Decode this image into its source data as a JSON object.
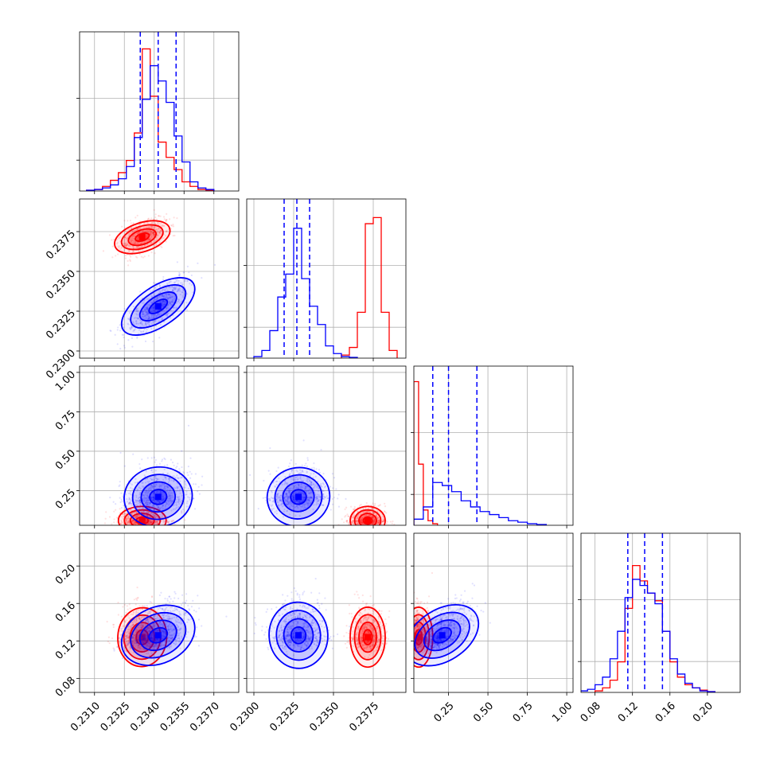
{
  "colors": {
    "series_a": "#ff0000",
    "series_b": "#0000ff",
    "grid": "#b0b0b0"
  },
  "chart_data": {
    "type": "corner",
    "grid": true,
    "parameters": [
      {
        "ticks": [
          0.231,
          0.2325,
          0.234,
          0.2355,
          0.237
        ],
        "tick_labels": [
          "0.2310",
          "0.2325",
          "0.2340",
          "0.2355",
          "0.2370"
        ],
        "range": [
          0.23025,
          0.23825
        ]
      },
      {
        "ticks": [
          0.23,
          0.2325,
          0.235,
          0.2375
        ],
        "tick_labels": [
          "0.2300",
          "0.2325",
          "0.2350",
          "0.2375"
        ],
        "range": [
          0.22955,
          0.23955
        ]
      },
      {
        "ticks": [
          0.25,
          0.5,
          0.75,
          1.0
        ],
        "tick_labels": [
          "0.25",
          "0.50",
          "0.75",
          "1.00"
        ],
        "range": [
          0.03,
          1.04
        ]
      },
      {
        "ticks": [
          0.08,
          0.12,
          0.16,
          0.2
        ],
        "tick_labels": [
          "0.08",
          "0.12",
          "0.16",
          "0.20"
        ],
        "range": [
          0.065,
          0.235
        ]
      }
    ],
    "series": [
      {
        "color": "#ff0000",
        "peak": [
          0.2334,
          0.23715,
          0.06,
          0.124
        ],
        "spread": [
          0.0006,
          0.00055,
          0.045,
          0.016
        ],
        "rho": [
          [
            0,
            0.45,
            0,
            -0.05
          ],
          [
            0.45,
            0,
            0,
            0
          ],
          [
            0,
            0,
            0,
            0
          ],
          [
            -0.05,
            0,
            0,
            0
          ]
        ],
        "hist": [
          {
            "bins": [
              0.2306,
              0.231,
              0.2314,
              0.2318,
              0.2322,
              0.2326,
              0.233,
              0.2334,
              0.2338,
              0.2342,
              0.2346,
              0.235,
              0.2354,
              0.2358,
              0.2362,
              0.2366,
              0.237
            ],
            "counts": [
              0.005,
              0.01,
              0.03,
              0.07,
              0.12,
              0.2,
              0.38,
              0.93,
              0.62,
              0.32,
              0.22,
              0.14,
              0.06,
              0.03,
              0.01,
              0.005
            ]
          },
          {
            "bins": [
              0.2355,
              0.236,
              0.2365,
              0.237,
              0.2375,
              0.238,
              0.2385,
              0.239
            ],
            "counts": [
              0.02,
              0.07,
              0.3,
              0.88,
              0.92,
              0.3,
              0.05
            ]
          },
          {
            "bins": [
              0.03,
              0.06,
              0.09,
              0.12,
              0.15,
              0.18
            ],
            "counts": [
              0.94,
              0.4,
              0.1,
              0.03,
              0.01
            ]
          },
          {
            "bins": [
              0.08,
              0.088,
              0.096,
              0.104,
              0.112,
              0.12,
              0.128,
              0.136,
              0.144,
              0.152,
              0.16,
              0.168,
              0.176,
              0.184,
              0.192,
              0.2,
              0.208
            ],
            "counts": [
              0.01,
              0.03,
              0.08,
              0.2,
              0.55,
              0.83,
              0.73,
              0.65,
              0.6,
              0.4,
              0.2,
              0.1,
              0.05,
              0.03,
              0.015,
              0.005
            ]
          }
        ]
      },
      {
        "color": "#0000ff",
        "peak": [
          0.2342,
          0.2328,
          0.21,
          0.126
        ],
        "spread": [
          0.0008,
          0.0009,
          0.1,
          0.018
        ],
        "rho": [
          [
            0,
            0.75,
            0.15,
            0.45
          ],
          [
            0.75,
            0,
            0.2,
            0.05
          ],
          [
            0.15,
            0.2,
            0,
            0.6
          ],
          [
            0.45,
            0.05,
            0.6,
            0
          ]
        ],
        "quantiles": [
          [
            0.2333,
            0.2342,
            0.2351
          ],
          [
            0.2319,
            0.2327,
            0.2335
          ],
          [
            0.15,
            0.25,
            0.43
          ],
          [
            0.115,
            0.133,
            0.152
          ]
        ],
        "hist": [
          {
            "bins": [
              0.2306,
              0.231,
              0.2314,
              0.2318,
              0.2322,
              0.2326,
              0.233,
              0.2334,
              0.2338,
              0.2342,
              0.2346,
              0.235,
              0.2354,
              0.2358,
              0.2362,
              0.2366,
              0.237
            ],
            "counts": [
              0.005,
              0.01,
              0.02,
              0.04,
              0.08,
              0.16,
              0.35,
              0.6,
              0.82,
              0.72,
              0.58,
              0.36,
              0.19,
              0.06,
              0.02,
              0.01
            ]
          },
          {
            "bins": [
              0.23,
              0.2305,
              0.231,
              0.2315,
              0.232,
              0.2325,
              0.233,
              0.2335,
              0.234,
              0.2345,
              0.235,
              0.2355,
              0.236,
              0.2365
            ],
            "counts": [
              0.01,
              0.05,
              0.18,
              0.4,
              0.55,
              0.85,
              0.52,
              0.34,
              0.22,
              0.08,
              0.03,
              0.01,
              0.005
            ]
          },
          {
            "bins": [
              0.03,
              0.09,
              0.15,
              0.21,
              0.27,
              0.33,
              0.39,
              0.45,
              0.51,
              0.57,
              0.63,
              0.69,
              0.75,
              0.81,
              0.87
            ],
            "counts": [
              0.04,
              0.12,
              0.28,
              0.26,
              0.22,
              0.16,
              0.12,
              0.09,
              0.07,
              0.05,
              0.03,
              0.02,
              0.01,
              0.005
            ]
          },
          {
            "bins": [
              0.064,
              0.072,
              0.08,
              0.088,
              0.096,
              0.104,
              0.112,
              0.12,
              0.128,
              0.136,
              0.144,
              0.152,
              0.16,
              0.168,
              0.176,
              0.184,
              0.192,
              0.2,
              0.208
            ],
            "counts": [
              0.01,
              0.02,
              0.05,
              0.1,
              0.22,
              0.4,
              0.62,
              0.74,
              0.7,
              0.65,
              0.58,
              0.4,
              0.22,
              0.12,
              0.06,
              0.03,
              0.01,
              0.005
            ]
          }
        ]
      }
    ]
  }
}
